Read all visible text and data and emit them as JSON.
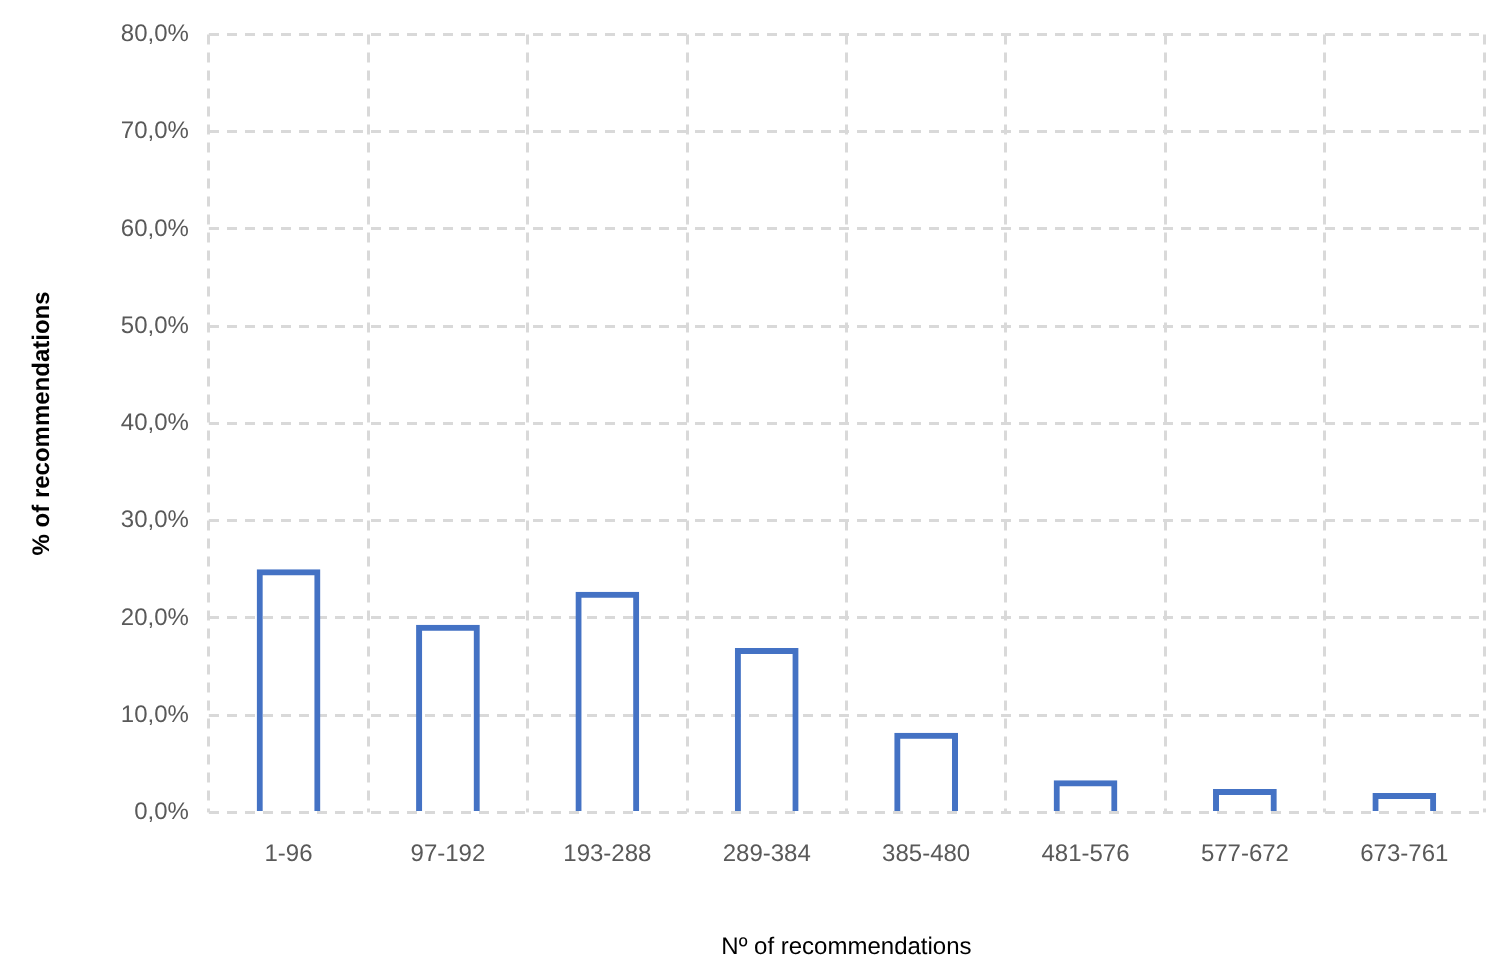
{
  "chart_data": {
    "type": "bar",
    "xlabel": "Nº of recommendations",
    "ylabel": "% of recommendations",
    "categories": [
      "1-96",
      "97-192",
      "193-288",
      "289-384",
      "385-480",
      "481-576",
      "577-672",
      "673-761"
    ],
    "values": [
      25.0,
      19.3,
      22.7,
      16.9,
      8.2,
      3.3,
      2.4,
      2.0
    ],
    "color": "#4472c4",
    "ylim": [
      0,
      80
    ],
    "yticks": [
      {
        "value": 0,
        "label": "0,0%"
      },
      {
        "value": 10,
        "label": "10,0%"
      },
      {
        "value": 20,
        "label": "20,0%"
      },
      {
        "value": 30,
        "label": "30,0%"
      },
      {
        "value": 40,
        "label": "40,0%"
      },
      {
        "value": 50,
        "label": "50,0%"
      },
      {
        "value": 60,
        "label": "60,0%"
      },
      {
        "value": 70,
        "label": "70,0%"
      },
      {
        "value": 80,
        "label": "80,0%"
      }
    ],
    "grid": true
  }
}
